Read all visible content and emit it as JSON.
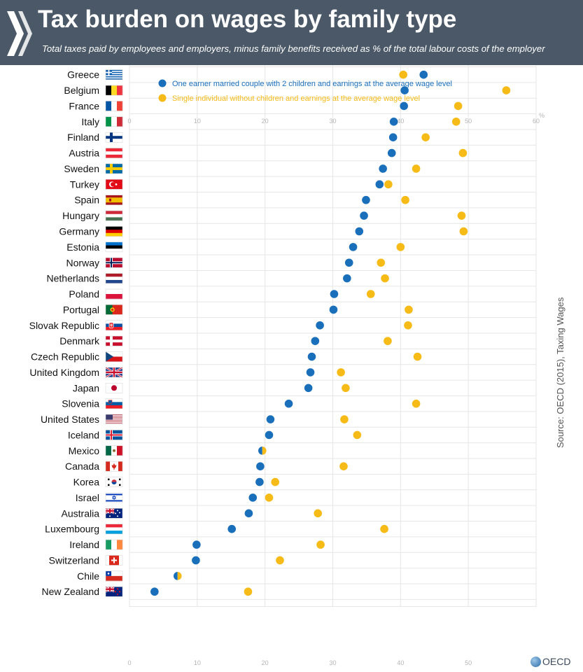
{
  "header": {
    "title": "Tax burden on wages by family type",
    "subtitle": "Total taxes paid by employees and employers, minus family benefits received as % of the total labour costs of the employer",
    "logo_icon": "oecd-chevrons-icon"
  },
  "source": "Source: OECD (2015), Taxing Wages",
  "brand": "OECD",
  "colors": {
    "header_bg": "#4b5867",
    "married": "#1a6fbb",
    "single": "#f6bb17",
    "grid": "#e6e6e6",
    "tick": "#b5b5b5"
  },
  "chart_data": {
    "type": "scatter",
    "title": "Tax burden on wages by family type",
    "xlabel": "%",
    "xlim": [
      0,
      60
    ],
    "xticks": [
      0,
      10,
      20,
      30,
      40,
      50,
      60
    ],
    "unit_label": "%",
    "legend_position": "top",
    "categories": [
      "Greece",
      "Belgium",
      "France",
      "Italy",
      "Finland",
      "Austria",
      "Sweden",
      "Turkey",
      "Spain",
      "Hungary",
      "Germany",
      "Estonia",
      "Norway",
      "Netherlands",
      "Poland",
      "Portugal",
      "Slovak Republic",
      "Denmark",
      "Czech Republic",
      "United Kingdom",
      "Japan",
      "Slovenia",
      "United States",
      "Iceland",
      "Mexico",
      "Canada",
      "Korea",
      "Israel",
      "Australia",
      "Luxembourg",
      "Ireland",
      "Switzerland",
      "Chile",
      "New Zealand"
    ],
    "series": [
      {
        "name": "One earner married couple with 2 children and earnings at the average wage level",
        "color": "#1a6fbb",
        "values": [
          43.4,
          40.6,
          40.5,
          39.0,
          38.9,
          38.7,
          37.4,
          36.9,
          34.9,
          34.6,
          33.9,
          33.0,
          32.4,
          32.1,
          30.2,
          30.1,
          28.1,
          27.4,
          26.9,
          26.7,
          26.4,
          23.5,
          20.8,
          20.6,
          19.5,
          19.3,
          19.2,
          18.2,
          17.6,
          15.1,
          9.9,
          9.8,
          7.0,
          3.7
        ]
      },
      {
        "name": "Single individual without children and earnings at the average wage level",
        "color": "#f6bb17",
        "values": [
          40.4,
          55.6,
          48.5,
          48.2,
          43.7,
          49.2,
          42.3,
          38.2,
          40.7,
          49.0,
          49.3,
          40.0,
          37.1,
          37.7,
          35.6,
          41.2,
          41.1,
          38.1,
          42.5,
          31.2,
          31.9,
          42.3,
          31.7,
          33.6,
          19.7,
          31.6,
          21.5,
          20.6,
          27.8,
          37.6,
          28.2,
          22.2,
          7.2,
          17.5
        ]
      }
    ],
    "flags": [
      "greece-flag-icon",
      "belgium-flag-icon",
      "france-flag-icon",
      "italy-flag-icon",
      "finland-flag-icon",
      "austria-flag-icon",
      "sweden-flag-icon",
      "turkey-flag-icon",
      "spain-flag-icon",
      "hungary-flag-icon",
      "germany-flag-icon",
      "estonia-flag-icon",
      "norway-flag-icon",
      "netherlands-flag-icon",
      "poland-flag-icon",
      "portugal-flag-icon",
      "slovak-republic-flag-icon",
      "denmark-flag-icon",
      "czech-republic-flag-icon",
      "united-kingdom-flag-icon",
      "japan-flag-icon",
      "slovenia-flag-icon",
      "united-states-flag-icon",
      "iceland-flag-icon",
      "mexico-flag-icon",
      "canada-flag-icon",
      "korea-flag-icon",
      "israel-flag-icon",
      "australia-flag-icon",
      "luxembourg-flag-icon",
      "ireland-flag-icon",
      "switzerland-flag-icon",
      "chile-flag-icon",
      "new-zealand-flag-icon"
    ]
  }
}
